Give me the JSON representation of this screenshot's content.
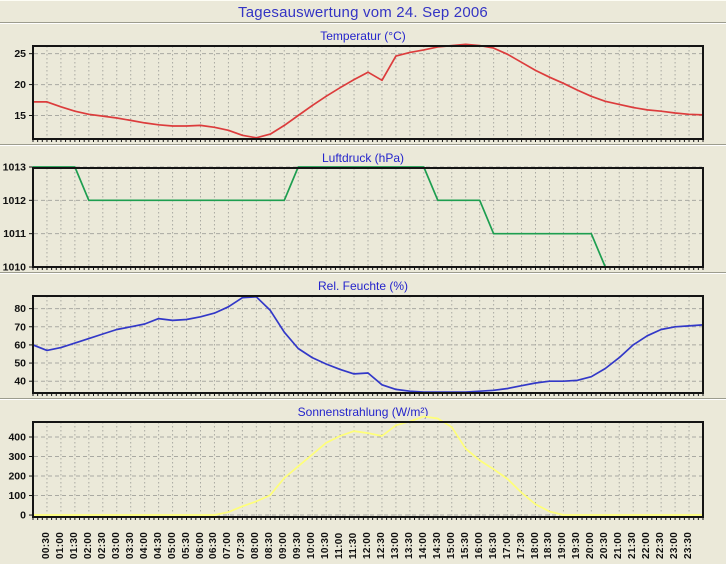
{
  "page": {
    "title": "Tagesauswertung vom 24. Sep 2006"
  },
  "colors": {
    "background": "#ebe9d9",
    "grid": "#a9a9a2",
    "plot_border": "#141414",
    "axis_text": "#111111",
    "main_title": "#3434c4",
    "chart_title": "#2424cc",
    "temperature_line": "#dc3c3c",
    "pressure_line": "#1d9e50",
    "humidity_line": "#3238c8",
    "solar_line": "#ffff78"
  },
  "x_axis": {
    "start_hour": 0,
    "end_hour": 24,
    "gridline_step_hours": 0.5,
    "minor_tick_step_hours": 0.1667,
    "labels": [
      "00:30",
      "01:00",
      "01:30",
      "02:00",
      "02:30",
      "03:00",
      "03:30",
      "04:00",
      "04:30",
      "05:00",
      "05:30",
      "06:00",
      "06:30",
      "07:00",
      "07:30",
      "08:00",
      "08:30",
      "09:00",
      "09:30",
      "10:00",
      "10:30",
      "11:00",
      "11:30",
      "12:00",
      "12:30",
      "13:00",
      "13:30",
      "14:00",
      "14:30",
      "15:00",
      "15:30",
      "16:00",
      "16:30",
      "17:00",
      "17:30",
      "18:00",
      "18:30",
      "19:00",
      "19:30",
      "20:00",
      "20:30",
      "21:00",
      "21:30",
      "22:00",
      "22:30",
      "23:00",
      "23:30"
    ]
  },
  "chart_data": [
    {
      "type": "line",
      "title": "Temperatur (°C)",
      "series_name": "temperature",
      "unit": "°C",
      "color_key": "temperature_line",
      "ylim": [
        11.2,
        26.4
      ],
      "yticks": [
        15,
        20,
        25
      ],
      "x_start": 0,
      "x_step": 0.5,
      "values": [
        17.2,
        17.2,
        16.4,
        15.7,
        15.2,
        14.9,
        14.6,
        14.2,
        13.8,
        13.5,
        13.3,
        13.3,
        13.4,
        13.1,
        12.6,
        11.8,
        11.4,
        12.0,
        13.4,
        15.0,
        16.6,
        18.1,
        19.5,
        20.8,
        22.0,
        20.7,
        24.6,
        25.2,
        25.6,
        26.1,
        26.3,
        26.5,
        26.3,
        25.9,
        24.9,
        23.6,
        22.3,
        21.2,
        20.2,
        19.1,
        18.1,
        17.3,
        16.8,
        16.3,
        15.9,
        15.7,
        15.4,
        15.2,
        15.1
      ]
    },
    {
      "type": "line",
      "title": "Luftdruck (hPa)",
      "series_name": "pressure",
      "unit": "hPa",
      "color_key": "pressure_line",
      "ylim": [
        1010,
        1013
      ],
      "yticks": [
        1010,
        1011,
        1012,
        1013
      ],
      "x_start": 0,
      "x_step": 0.5,
      "values": [
        1013,
        1013,
        1013,
        1013,
        1012,
        1012,
        1012,
        1012,
        1012,
        1012,
        1012,
        1012,
        1012,
        1012,
        1012,
        1012,
        1012,
        1012,
        1012,
        1013,
        1013,
        1013,
        1013,
        1013,
        1013,
        1013,
        1013,
        1013,
        1013,
        1012,
        1012,
        1012,
        1012,
        1011,
        1011,
        1011,
        1011,
        1011,
        1011,
        1011,
        1011,
        1010,
        1010,
        1010,
        1010,
        1010,
        1010,
        1010,
        1010
      ]
    },
    {
      "type": "line",
      "title": "Rel. Feuchte (%)",
      "series_name": "relative_humidity",
      "unit": "%",
      "color_key": "humidity_line",
      "ylim": [
        33.5,
        87.5
      ],
      "yticks": [
        40,
        50,
        60,
        70,
        80
      ],
      "x_start": 0,
      "x_step": 0.5,
      "values": [
        60,
        57,
        58.5,
        61,
        63.5,
        66,
        68.5,
        70,
        71.5,
        74.5,
        73.5,
        74,
        75.5,
        77.5,
        81,
        86,
        86.5,
        79,
        67,
        58,
        53,
        49.5,
        46.5,
        44,
        44.5,
        38,
        35.5,
        34.5,
        34,
        34,
        34,
        34,
        34.5,
        35,
        36,
        37.5,
        39,
        40,
        40,
        40.5,
        42.5,
        47,
        53,
        60,
        65,
        68.5,
        70,
        70.5,
        71
      ]
    },
    {
      "type": "line",
      "title": "Sonnenstrahlung (W/m²)",
      "series_name": "solar_radiation",
      "unit": "W/m²",
      "color_key": "solar_line",
      "ylim": [
        -10,
        482
      ],
      "yticks": [
        0,
        100,
        200,
        300,
        400
      ],
      "x_start": 0,
      "x_step": 0.5,
      "values": [
        0,
        0,
        0,
        0,
        0,
        0,
        0,
        0,
        0,
        0,
        0,
        0,
        0,
        0,
        15,
        45,
        70,
        102,
        190,
        250,
        310,
        370,
        405,
        430,
        420,
        405,
        460,
        480,
        505,
        495,
        450,
        340,
        280,
        235,
        185,
        115,
        55,
        18,
        0,
        0,
        0,
        0,
        0,
        0,
        0,
        0,
        0,
        0,
        0
      ]
    }
  ]
}
